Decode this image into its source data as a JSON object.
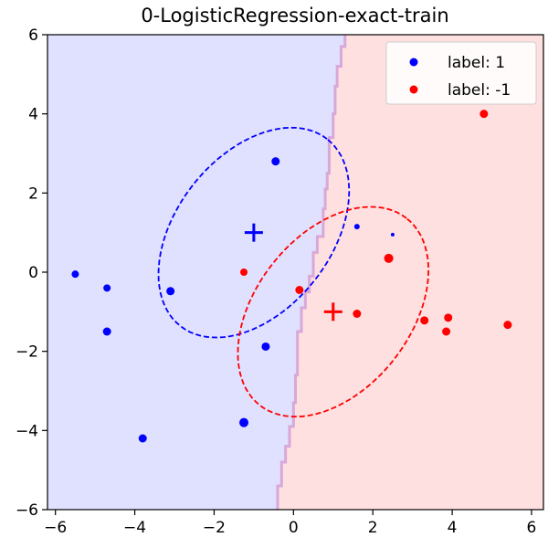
{
  "chart_data": {
    "type": "scatter",
    "title": "0-LogisticRegression-exact-train",
    "xlabel": "",
    "ylabel": "",
    "xlim": [
      -6.2,
      6.3
    ],
    "ylim": [
      -6,
      6
    ],
    "xticks": [
      -6,
      -4,
      -2,
      0,
      2,
      4,
      6
    ],
    "yticks": [
      -6,
      -4,
      -2,
      0,
      2,
      4,
      6
    ],
    "xtick_labels": [
      "−6",
      "−4",
      "−2",
      "0",
      "2",
      "4",
      "6"
    ],
    "ytick_labels": [
      "−6",
      "−4",
      "−2",
      "0",
      "2",
      "4",
      "6"
    ],
    "grid": false,
    "legend_position": "top-right",
    "decision_boundary": {
      "x": [
        -0.4,
        -0.4,
        -0.3,
        -0.3,
        -0.2,
        -0.2,
        -0.1,
        -0.1,
        0.0,
        0.0,
        0.05,
        0.05,
        0.1,
        0.1,
        0.2,
        0.2,
        0.3,
        0.3,
        0.4,
        0.4,
        0.5,
        0.5,
        0.6,
        0.6,
        0.75,
        0.75,
        0.8,
        0.8,
        0.85,
        0.85,
        0.9,
        0.9,
        1.0,
        1.0,
        1.05,
        1.05,
        1.1,
        1.1,
        1.2,
        1.2,
        1.3,
        1.3
      ],
      "y": [
        -6.0,
        -5.4,
        -5.4,
        -4.8,
        -4.8,
        -4.4,
        -4.4,
        -3.9,
        -3.9,
        -3.3,
        -3.3,
        -2.6,
        -2.6,
        -1.5,
        -1.5,
        -0.9,
        -0.9,
        -0.5,
        -0.5,
        -0.1,
        -0.1,
        0.5,
        0.5,
        0.9,
        0.9,
        1.6,
        1.6,
        2.1,
        2.1,
        2.5,
        2.5,
        3.4,
        3.4,
        4.0,
        4.0,
        4.7,
        4.7,
        5.2,
        5.2,
        5.7,
        5.7,
        6.0
      ],
      "left_region_color": "#e0e0ff",
      "right_region_color": "#ffe0e0",
      "boundary_color": "#d8a8d8"
    },
    "series": [
      {
        "name": "label: 1",
        "color": "#0000ff",
        "points": [
          {
            "x": -5.5,
            "y": -0.05,
            "size": 4
          },
          {
            "x": -4.7,
            "y": -0.4,
            "size": 4
          },
          {
            "x": -4.7,
            "y": -1.5,
            "size": 4.5
          },
          {
            "x": -3.8,
            "y": -4.2,
            "size": 4.5
          },
          {
            "x": -3.1,
            "y": -0.48,
            "size": 4.5
          },
          {
            "x": -1.25,
            "y": -3.8,
            "size": 5
          },
          {
            "x": -0.7,
            "y": -1.88,
            "size": 4.5
          },
          {
            "x": -0.45,
            "y": 2.8,
            "size": 4.5
          },
          {
            "x": 1.6,
            "y": 1.15,
            "size": 3
          },
          {
            "x": 2.5,
            "y": 0.95,
            "size": 2
          }
        ],
        "center": {
          "x": -1,
          "y": 1
        },
        "ellipse": {
          "cx": -1.0,
          "cy": 1.0,
          "rx": 3.0,
          "ry": 1.95,
          "angle_deg": 52
        }
      },
      {
        "name": "label: -1",
        "color": "#ff0000",
        "points": [
          {
            "x": -1.25,
            "y": 0.0,
            "size": 4
          },
          {
            "x": 0.15,
            "y": -0.45,
            "size": 4.5
          },
          {
            "x": 1.6,
            "y": -1.05,
            "size": 4.5
          },
          {
            "x": 2.4,
            "y": 0.35,
            "size": 5
          },
          {
            "x": 3.3,
            "y": -1.22,
            "size": 4.5
          },
          {
            "x": 3.85,
            "y": -1.5,
            "size": 4.5
          },
          {
            "x": 3.9,
            "y": -1.15,
            "size": 4.5
          },
          {
            "x": 4.8,
            "y": 4.0,
            "size": 4.5
          },
          {
            "x": 5.4,
            "y": -1.33,
            "size": 4.5
          }
        ],
        "center": {
          "x": 1,
          "y": -1
        },
        "ellipse": {
          "cx": 1.0,
          "cy": -1.0,
          "rx": 3.0,
          "ry": 1.95,
          "angle_deg": 52
        }
      }
    ]
  }
}
